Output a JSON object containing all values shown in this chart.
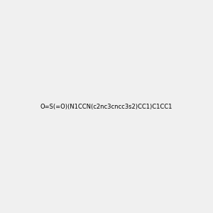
{
  "smiles": "O=S(=O)(N1CCN(c2nc3cncc3s2)CC1)C1CC1",
  "image_size": 300,
  "background_color": "#f0f0f0"
}
